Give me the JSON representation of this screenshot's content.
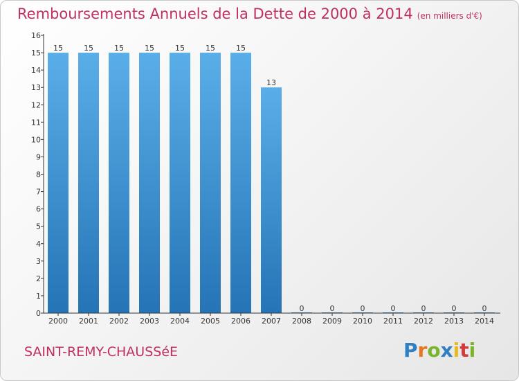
{
  "title": "Remboursements Annuels de la Dette de 2000 à 2014",
  "subtitle": "(en milliers d'€)",
  "commune": "SAINT-REMY-CHAUSSéE",
  "logo": {
    "letters": [
      "P",
      "r",
      "o",
      "x",
      "i",
      "t",
      "i"
    ],
    "colors": [
      "#2f7fc4",
      "#e87722",
      "#79b52c",
      "#2f7fc4",
      "#e8b820",
      "#d33a3a",
      "#79b52c"
    ]
  },
  "colors": {
    "accent": "#c0305f",
    "bar_top": "#5aaee8",
    "bar_bottom": "#2574b6",
    "axis": "#333333"
  },
  "chart_data": {
    "type": "bar",
    "title": "Remboursements Annuels de la Dette de 2000 à 2014",
    "xlabel": "",
    "ylabel": "",
    "categories": [
      "2000",
      "2001",
      "2002",
      "2003",
      "2004",
      "2005",
      "2006",
      "2007",
      "2008",
      "2009",
      "2010",
      "2011",
      "2012",
      "2013",
      "2014"
    ],
    "values": [
      15,
      15,
      15,
      15,
      15,
      15,
      15,
      13,
      0,
      0,
      0,
      0,
      0,
      0,
      0
    ],
    "ylim": [
      0,
      16
    ],
    "yticks": [
      0,
      1,
      2,
      3,
      4,
      5,
      6,
      7,
      8,
      9,
      10,
      11,
      12,
      13,
      14,
      15,
      16
    ],
    "grid": false,
    "data_labels": true
  }
}
